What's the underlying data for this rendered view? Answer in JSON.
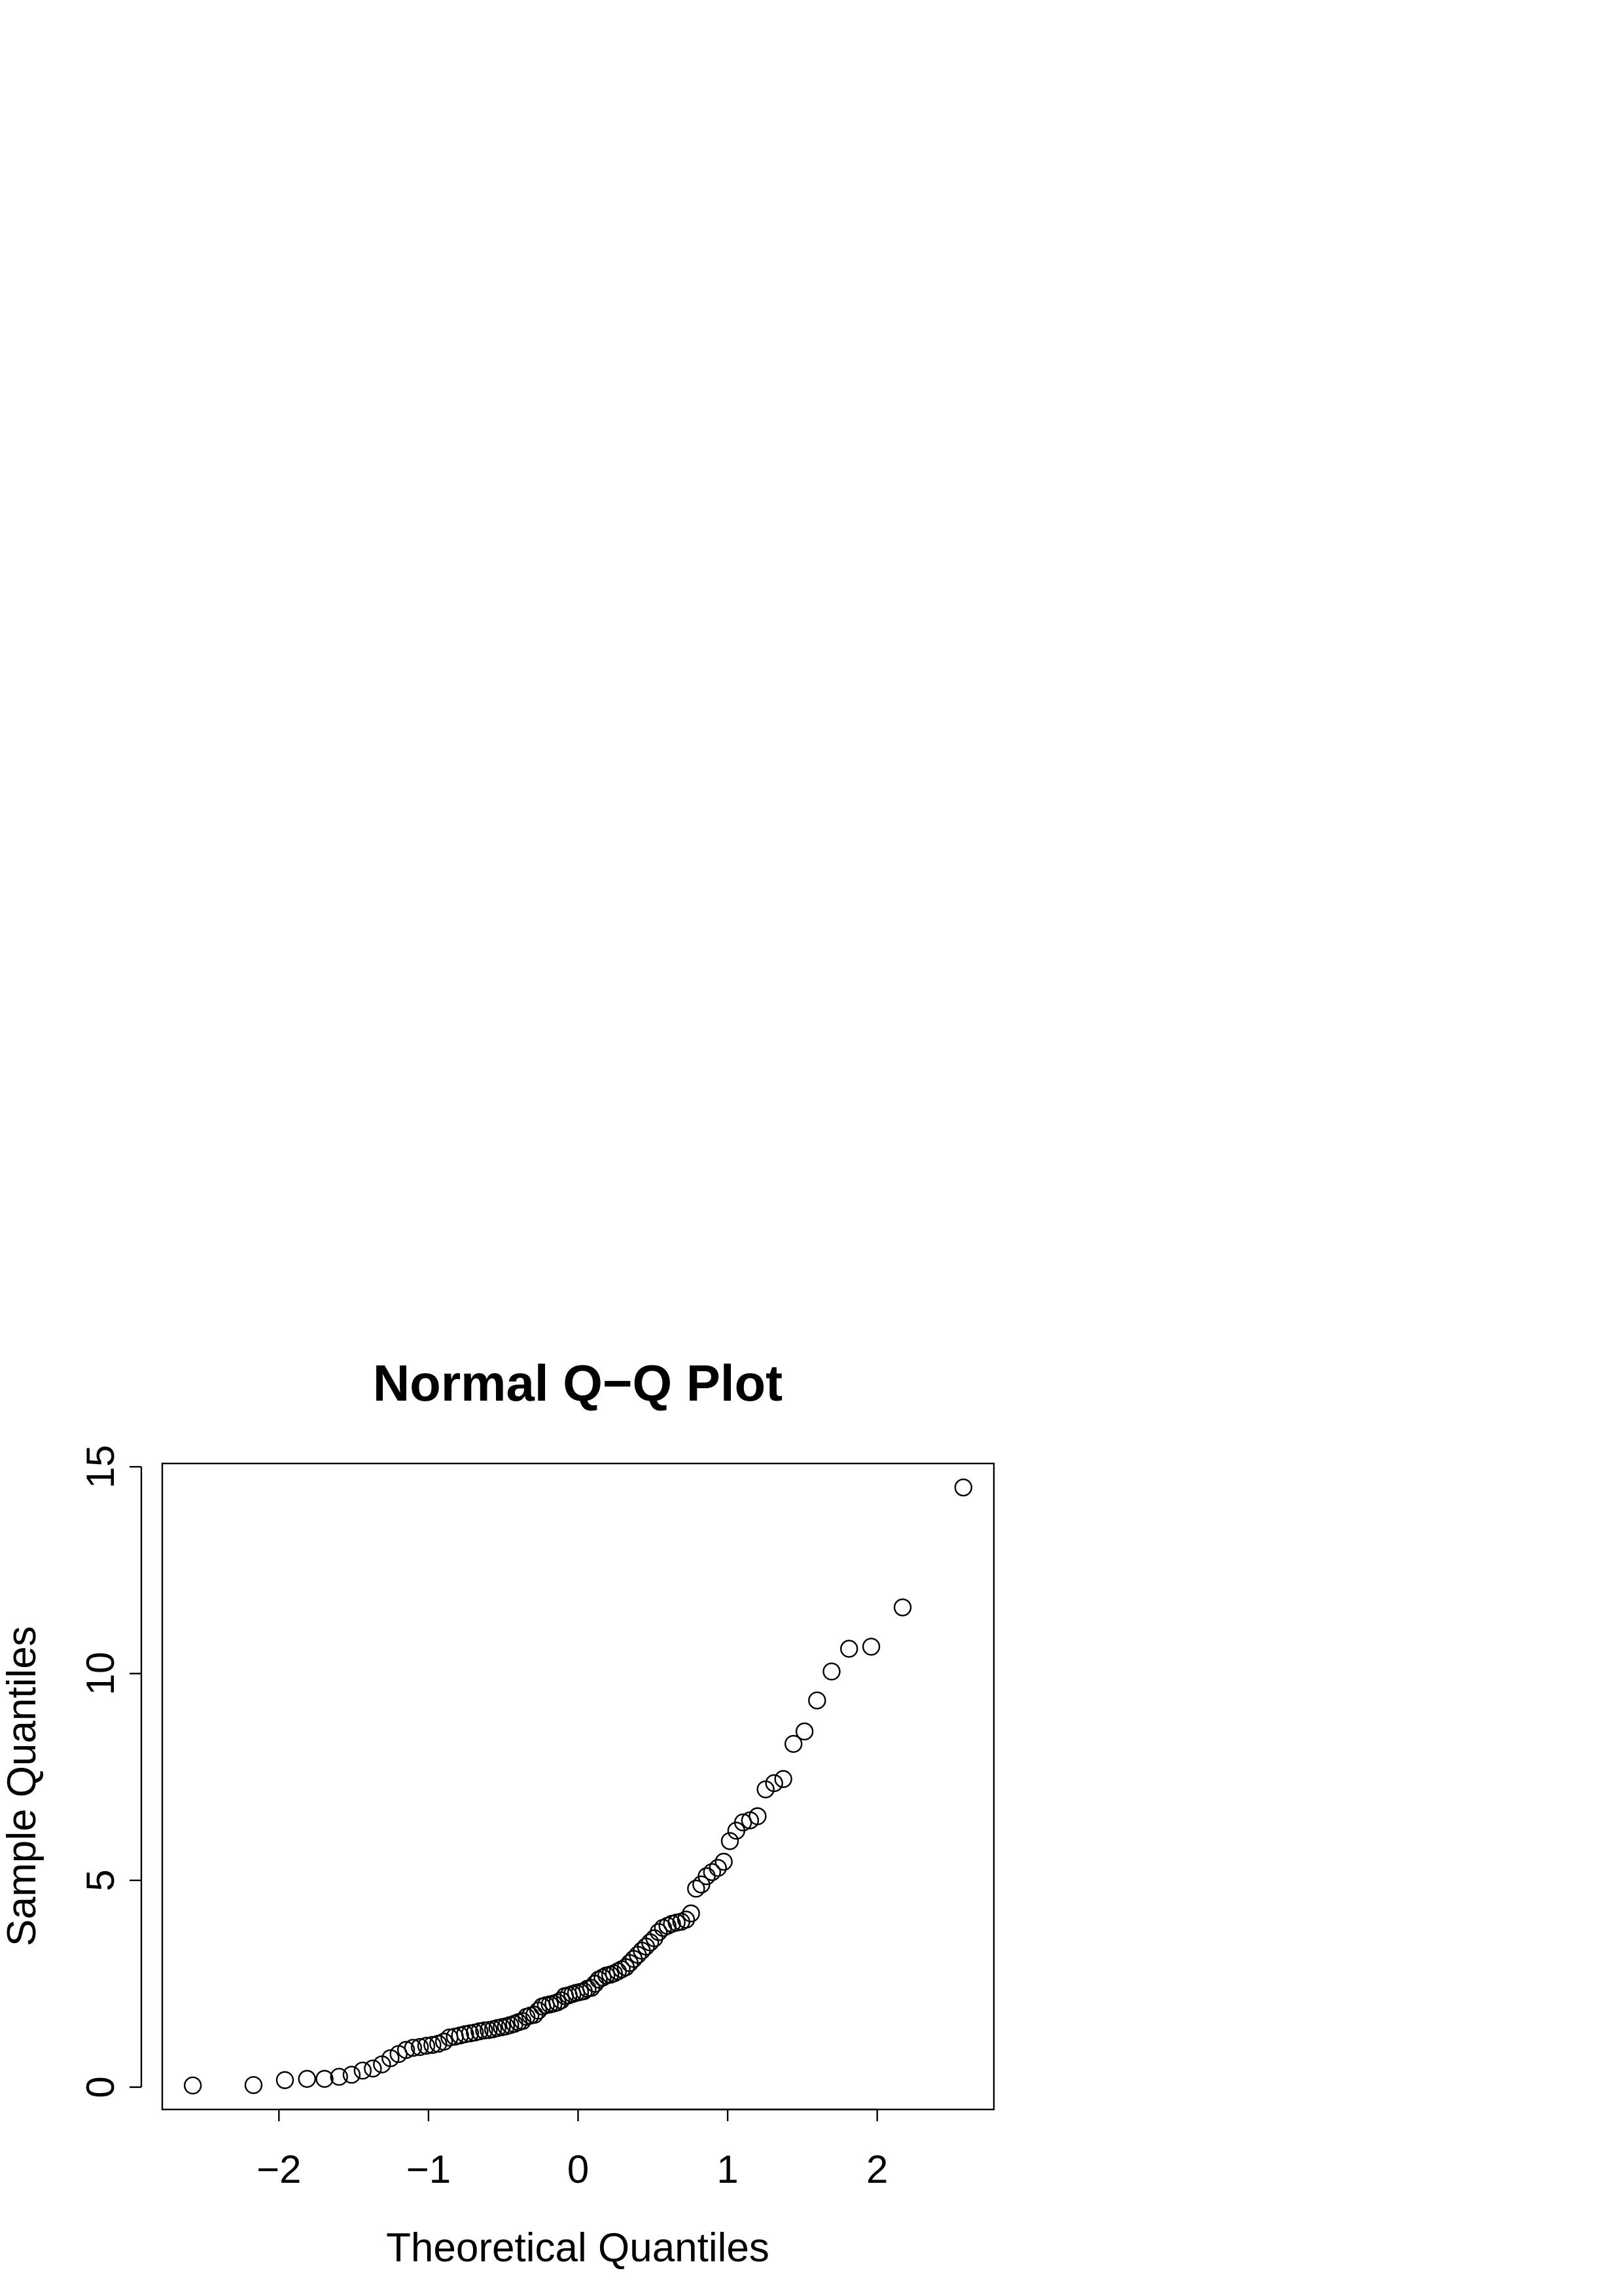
{
  "chart_data": {
    "type": "scatter",
    "title": "Normal Q−Q Plot",
    "x_label": "Theoretical Quantiles",
    "y_label": "Sample Quantiles",
    "xlim": [
      -2.78,
      2.78
    ],
    "ylim": [
      -0.54,
      15.08
    ],
    "xticks": [
      {
        "value": -2,
        "label": "−2"
      },
      {
        "value": -1,
        "label": "−1"
      },
      0,
      1,
      2
    ],
    "yticks": [
      0,
      5,
      10,
      15
    ],
    "color": "#000000",
    "x": [
      -2.576,
      -2.17,
      -1.96,
      -1.812,
      -1.695,
      -1.598,
      -1.514,
      -1.44,
      -1.372,
      -1.311,
      -1.254,
      -1.2,
      -1.15,
      -1.103,
      -1.058,
      -1.015,
      -0.974,
      -0.935,
      -0.896,
      -0.86,
      -0.824,
      -0.789,
      -0.755,
      -0.722,
      -0.69,
      -0.659,
      -0.628,
      -0.598,
      -0.568,
      -0.539,
      -0.51,
      -0.482,
      -0.454,
      -0.426,
      -0.399,
      -0.372,
      -0.345,
      -0.319,
      -0.292,
      -0.266,
      -0.24,
      -0.215,
      -0.189,
      -0.164,
      -0.138,
      -0.113,
      -0.088,
      -0.063,
      -0.038,
      -0.013,
      0.013,
      0.038,
      0.063,
      0.088,
      0.113,
      0.138,
      0.164,
      0.189,
      0.215,
      0.24,
      0.266,
      0.292,
      0.319,
      0.345,
      0.372,
      0.399,
      0.426,
      0.454,
      0.482,
      0.51,
      0.539,
      0.568,
      0.598,
      0.628,
      0.659,
      0.69,
      0.722,
      0.755,
      0.789,
      0.824,
      0.86,
      0.896,
      0.935,
      0.974,
      1.015,
      1.058,
      1.103,
      1.15,
      1.2,
      1.254,
      1.311,
      1.372,
      1.44,
      1.514,
      1.598,
      1.695,
      1.812,
      1.96,
      2.17,
      2.576
    ],
    "values": [
      0.04,
      0.05,
      0.17,
      0.2,
      0.2,
      0.25,
      0.3,
      0.4,
      0.45,
      0.55,
      0.7,
      0.8,
      0.9,
      0.95,
      0.97,
      1.0,
      1.02,
      1.05,
      1.1,
      1.2,
      1.22,
      1.25,
      1.28,
      1.3,
      1.32,
      1.35,
      1.37,
      1.38,
      1.4,
      1.43,
      1.45,
      1.47,
      1.5,
      1.53,
      1.57,
      1.6,
      1.7,
      1.73,
      1.75,
      1.85,
      1.95,
      1.98,
      2.0,
      2.02,
      2.05,
      2.1,
      2.2,
      2.22,
      2.25,
      2.28,
      2.3,
      2.32,
      2.38,
      2.4,
      2.5,
      2.6,
      2.65,
      2.7,
      2.72,
      2.75,
      2.8,
      2.85,
      2.9,
      3.0,
      3.1,
      3.2,
      3.3,
      3.4,
      3.5,
      3.6,
      3.75,
      3.85,
      3.9,
      3.95,
      3.98,
      4.0,
      4.05,
      4.2,
      4.8,
      4.9,
      5.1,
      5.2,
      5.3,
      5.45,
      5.95,
      6.2,
      6.4,
      6.45,
      6.55,
      7.2,
      7.35,
      7.45,
      8.3,
      8.6,
      9.35,
      10.05,
      10.6,
      10.65,
      11.6,
      14.5
    ]
  }
}
